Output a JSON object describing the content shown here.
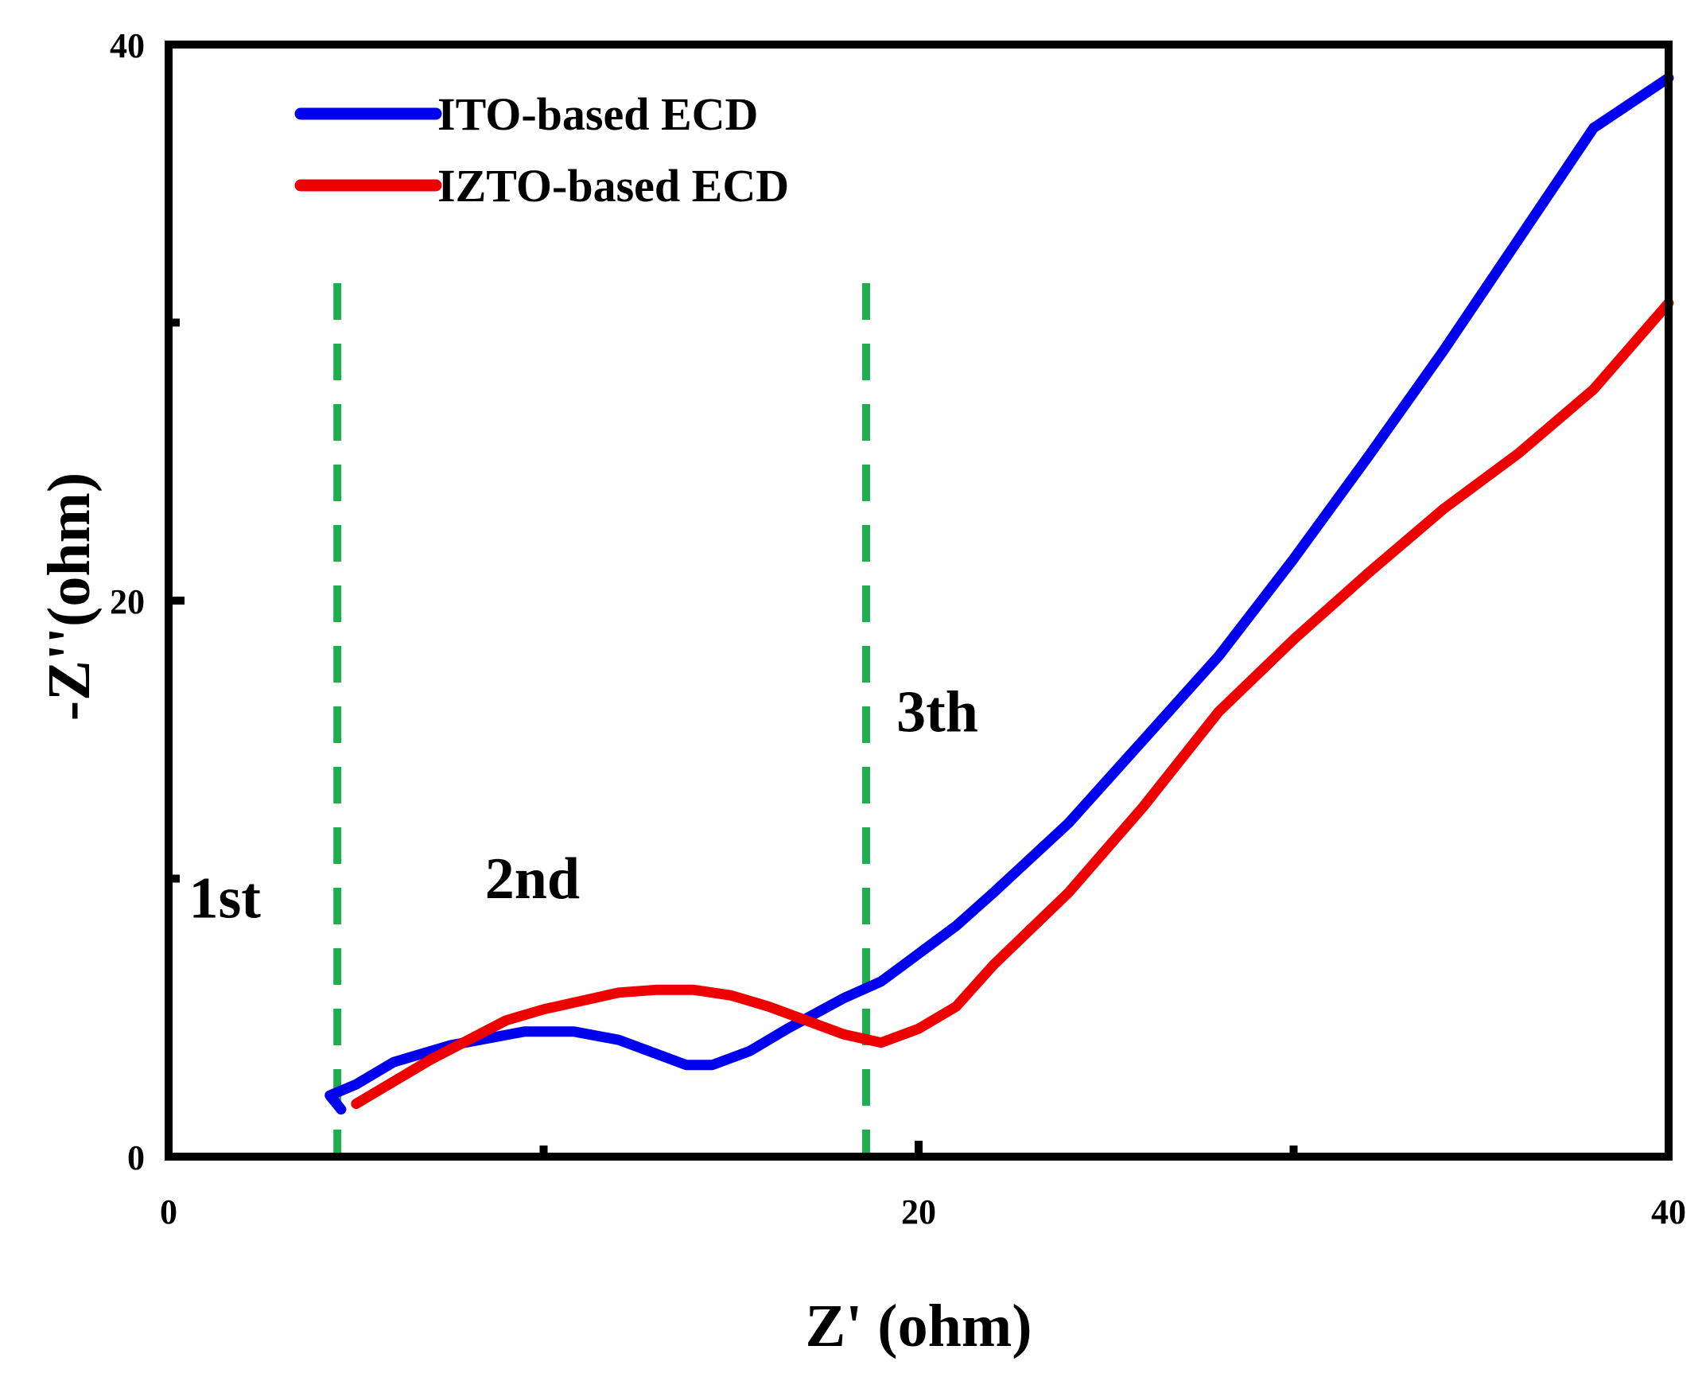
{
  "chart_data": {
    "type": "line",
    "title": "",
    "xlabel": "Z' (ohm)",
    "ylabel": "-Z''(ohm)",
    "xlim": [
      0,
      40
    ],
    "ylim": [
      0,
      40
    ],
    "x_ticks": [
      0,
      20,
      40
    ],
    "y_ticks": [
      0,
      20,
      40
    ],
    "x_minor_ticks": [
      10,
      30
    ],
    "y_minor_ticks": [
      10,
      30
    ],
    "legend_position": "top-left",
    "series": [
      {
        "name": "ITO-based ECD",
        "color": "#0000ee",
        "points": [
          [
            4.6,
            1.7
          ],
          [
            4.3,
            2.2
          ],
          [
            5.0,
            2.6
          ],
          [
            6.0,
            3.4
          ],
          [
            7.5,
            4.0
          ],
          [
            9.5,
            4.5
          ],
          [
            10.8,
            4.5
          ],
          [
            12.0,
            4.2
          ],
          [
            13.0,
            3.7
          ],
          [
            13.8,
            3.3
          ],
          [
            14.5,
            3.3
          ],
          [
            15.5,
            3.8
          ],
          [
            16.5,
            4.6
          ],
          [
            18.0,
            5.7
          ],
          [
            19.0,
            6.3
          ],
          [
            20.0,
            7.3
          ],
          [
            21.0,
            8.3
          ],
          [
            22.0,
            9.5
          ],
          [
            24.0,
            12.0
          ],
          [
            26.0,
            15.0
          ],
          [
            28.0,
            18.0
          ],
          [
            30.0,
            21.5
          ],
          [
            32.0,
            25.2
          ],
          [
            34.0,
            29.0
          ],
          [
            36.0,
            33.0
          ],
          [
            38.0,
            37.0
          ],
          [
            40.0,
            38.8
          ]
        ]
      },
      {
        "name": "IZTO-based ECD",
        "color": "#ee0000",
        "points": [
          [
            5.0,
            1.9
          ],
          [
            6.0,
            2.7
          ],
          [
            7.0,
            3.5
          ],
          [
            8.0,
            4.2
          ],
          [
            9.0,
            4.9
          ],
          [
            10.0,
            5.3
          ],
          [
            11.0,
            5.6
          ],
          [
            12.0,
            5.9
          ],
          [
            13.0,
            6.0
          ],
          [
            14.0,
            6.0
          ],
          [
            15.0,
            5.8
          ],
          [
            16.0,
            5.4
          ],
          [
            17.0,
            4.9
          ],
          [
            18.0,
            4.4
          ],
          [
            19.0,
            4.1
          ],
          [
            20.0,
            4.6
          ],
          [
            21.0,
            5.4
          ],
          [
            22.0,
            6.9
          ],
          [
            24.0,
            9.5
          ],
          [
            26.0,
            12.6
          ],
          [
            28.0,
            16.0
          ],
          [
            30.0,
            18.6
          ],
          [
            32.0,
            21.0
          ],
          [
            34.0,
            23.3
          ],
          [
            36.0,
            25.3
          ],
          [
            38.0,
            27.6
          ],
          [
            40.0,
            30.7
          ]
        ]
      }
    ],
    "vlines": [
      {
        "x": 4.5,
        "color": "#1fad4f",
        "style": "dashed"
      },
      {
        "x": 18.6,
        "color": "#1fad4f",
        "style": "dashed"
      }
    ],
    "annotations": [
      {
        "text": "1st",
        "x": 1.5,
        "y": 8.6
      },
      {
        "text": "2nd",
        "x": 9.7,
        "y": 9.3
      },
      {
        "text": "3th",
        "x": 20.5,
        "y": 15.3
      }
    ]
  }
}
